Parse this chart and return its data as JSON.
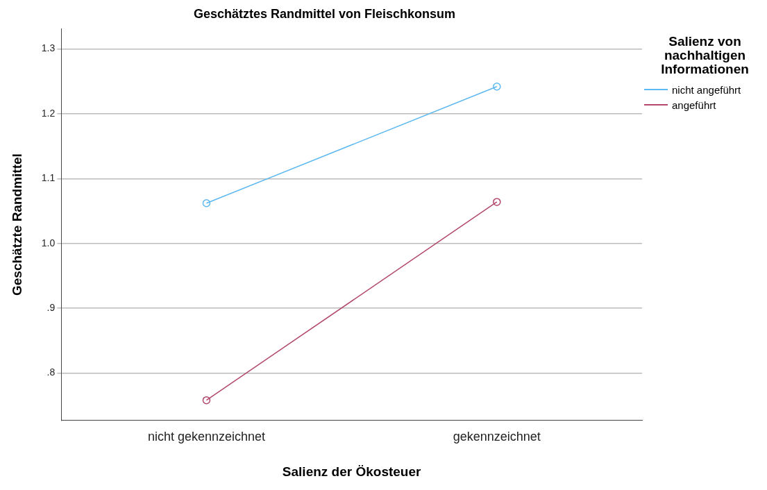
{
  "chart_data": {
    "type": "line",
    "title": "Geschätztes Randmittel von Fleischkonsum",
    "xlabel": "Salienz der Ökosteuer",
    "ylabel": "Geschätzte Randmittel",
    "legend_title": "Salienz von nachhaltigen Informationen",
    "categories": [
      "nicht gekennzeichnet",
      "gekennzeichnet"
    ],
    "series": [
      {
        "name": "nicht angeführt",
        "color": "#5bb8f0",
        "values": [
          1.062,
          1.242
        ]
      },
      {
        "name": "angeführt",
        "color": "#b2476a",
        "values": [
          0.758,
          1.064
        ]
      }
    ],
    "ylim": [
      0.727,
      1.331
    ],
    "yticks": [
      {
        "value": 0.8,
        "label": ".8"
      },
      {
        "value": 0.9,
        "label": ".9"
      },
      {
        "value": 1.0,
        "label": "1.0"
      },
      {
        "value": 1.1,
        "label": "1.1"
      },
      {
        "value": 1.2,
        "label": "1.2"
      },
      {
        "value": 1.3,
        "label": "1.3"
      }
    ],
    "grid": "y",
    "legend": "top right",
    "marker": "circle",
    "line_style": "solid"
  }
}
